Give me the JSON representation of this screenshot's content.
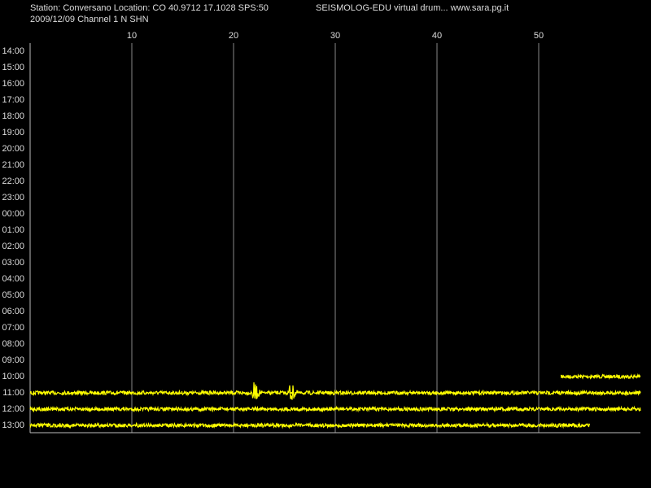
{
  "chart_data": {
    "type": "drum",
    "title": "Station: Conversano Location: CO 40.9712 17.1028 SPS:50",
    "subtitle": "2009/12/09  Channel 1 N SHN",
    "caption": "SEISMOLOG-EDU virtual drum... www.sara.pg.it",
    "categories": [
      "14:00",
      "15:00",
      "16:00",
      "17:00",
      "18:00",
      "19:00",
      "20:00",
      "21:00",
      "22:00",
      "23:00",
      "00:00",
      "01:00",
      "02:00",
      "03:00",
      "04:00",
      "05:00",
      "06:00",
      "07:00",
      "08:00",
      "09:00",
      "10:00",
      "11:00",
      "12:00",
      "13:00"
    ],
    "trace_start": [
      null,
      null,
      null,
      null,
      null,
      null,
      null,
      null,
      null,
      null,
      null,
      null,
      null,
      null,
      null,
      null,
      null,
      null,
      null,
      null,
      52.2,
      0,
      0,
      0
    ],
    "trace_end": [
      null,
      null,
      null,
      null,
      null,
      null,
      null,
      null,
      null,
      null,
      null,
      null,
      null,
      null,
      null,
      null,
      null,
      null,
      null,
      null,
      60,
      60,
      60,
      55
    ],
    "event_x": [
      null,
      null,
      null,
      null,
      null,
      null,
      null,
      null,
      null,
      null,
      null,
      null,
      null,
      null,
      null,
      null,
      null,
      null,
      null,
      null,
      null,
      [
        22.1,
        25.7
      ],
      null,
      null
    ],
    "color": "#ffff00",
    "xlim": [
      0,
      60
    ],
    "xticks": [
      10,
      20,
      30,
      40,
      50
    ],
    "grid": true
  }
}
